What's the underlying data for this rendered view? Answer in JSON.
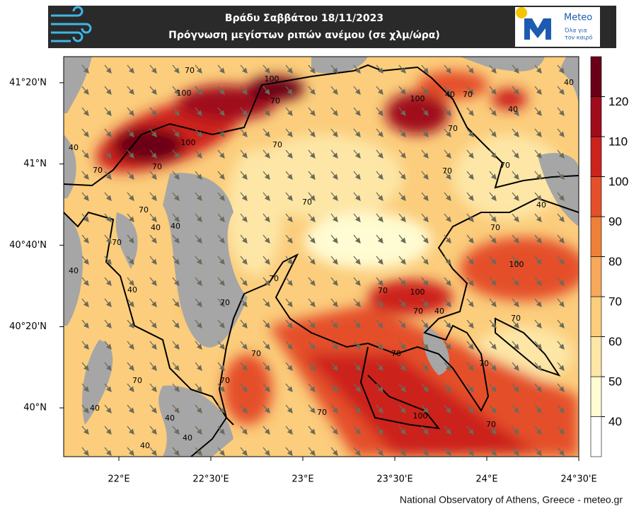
{
  "header": {
    "title_line1": "Βράδυ Σαββάτου 18/11/2023",
    "title_line2": "Πρόγνωση μεγίστων ριπών ανέμου (σε χλμ/ώρα)",
    "logo_name": "Meteo",
    "logo_tagline_1": "Όλα για",
    "logo_tagline_2": "τον καιρό"
  },
  "map": {
    "xlim": [
      21.7,
      24.5
    ],
    "ylim": [
      39.8,
      41.44
    ],
    "xticks": [
      {
        "value": 22,
        "label": "22°E"
      },
      {
        "value": 22.5,
        "label": "22°30'E"
      },
      {
        "value": 23,
        "label": "23°E"
      },
      {
        "value": 23.5,
        "label": "23°30'E"
      },
      {
        "value": 24,
        "label": "24°E"
      },
      {
        "value": 24.5,
        "label": "24°30'E"
      }
    ],
    "yticks": [
      {
        "value": 40,
        "label": "40°N"
      },
      {
        "value": 40.333,
        "label": "40°20'N"
      },
      {
        "value": 40.667,
        "label": "40°40'N"
      },
      {
        "value": 41,
        "label": "41°N"
      },
      {
        "value": 41.333,
        "label": "41°20'N"
      }
    ],
    "contour_labels": [
      70,
      100,
      100,
      70,
      100,
      40,
      70,
      70,
      70,
      70,
      70,
      40,
      40,
      70,
      40,
      40,
      70,
      70,
      70,
      100,
      70,
      40,
      70,
      100,
      70,
      40,
      70,
      70,
      40,
      70,
      40,
      100,
      70,
      40,
      70,
      70,
      70,
      100,
      70,
      70,
      40,
      40,
      40,
      40,
      70,
      70
    ],
    "colorbar": {
      "ticks": [
        40,
        50,
        60,
        70,
        80,
        90,
        100,
        110,
        120
      ],
      "colors": [
        "#ffffff",
        "#fffbd2",
        "#fde6a6",
        "#fbcd7c",
        "#f7a85a",
        "#ef8038",
        "#e4502a",
        "#cc231c",
        "#a00c1c",
        "#6a0018"
      ]
    }
  },
  "footer": "National Observatory of Athens, Greece - meteo.gr"
}
